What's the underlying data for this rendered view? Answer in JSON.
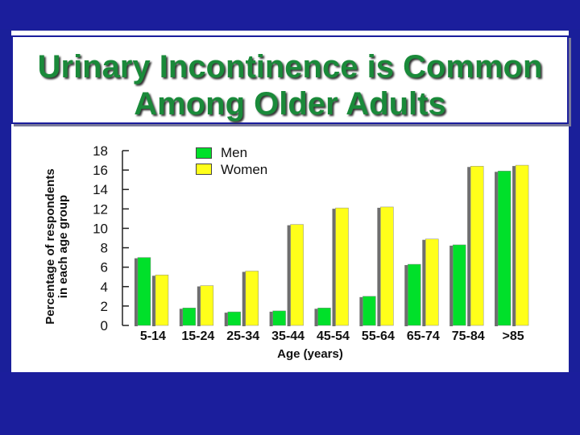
{
  "chart_data": {
    "type": "bar",
    "title": "Urinary Incontinence is Common Among Older Adults",
    "title_lines": [
      "Urinary Incontinence is Common",
      "Among Older Adults"
    ],
    "ylabel": "Percentage of respondents in each age group",
    "ylabel_lines": [
      "Percentage of respondents",
      "in each age group"
    ],
    "xlabel": "Age (years)",
    "ylim": [
      0,
      18
    ],
    "yticks": [
      "0",
      "2",
      "4",
      "6",
      "8",
      "10",
      "12",
      "14",
      "16",
      "18"
    ],
    "categories": [
      "5-14",
      "15-24",
      "25-34",
      "35-44",
      "45-54",
      "55-64",
      "65-74",
      "75-84",
      ">85"
    ],
    "series": [
      {
        "name": "Men",
        "color": "#00e02a",
        "values": [
          7,
          1.8,
          1.4,
          1.5,
          1.8,
          3.0,
          6.3,
          8.3,
          15.9
        ]
      },
      {
        "name": "Women",
        "color": "#ffff1a",
        "values": [
          5.2,
          4.1,
          5.6,
          10.4,
          12.1,
          12.2,
          8.9,
          16.4,
          16.5
        ]
      }
    ],
    "legend_position": "top-center",
    "grid": false
  },
  "colors": {
    "background": "#1b1e9c",
    "title": "#1a8a3a",
    "bar_shadow": "#6e6e6e"
  }
}
